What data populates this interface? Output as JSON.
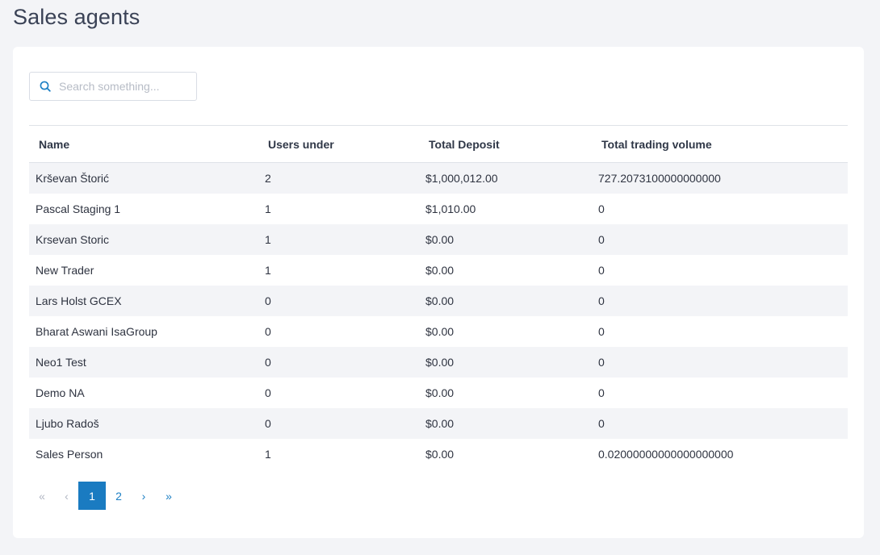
{
  "page": {
    "title": "Sales agents"
  },
  "search": {
    "placeholder": "Search something...",
    "value": ""
  },
  "table": {
    "headers": {
      "name": "Name",
      "users": "Users under",
      "deposit": "Total Deposit",
      "volume": "Total trading volume"
    },
    "rows": [
      {
        "name": "Krševan Štorić",
        "users": "2",
        "deposit": "$1,000,012.00",
        "volume": "727.2073100000000000"
      },
      {
        "name": "Pascal Staging 1",
        "users": "1",
        "deposit": "$1,010.00",
        "volume": "0"
      },
      {
        "name": "Krsevan Storic",
        "users": "1",
        "deposit": "$0.00",
        "volume": "0"
      },
      {
        "name": "New Trader",
        "users": "1",
        "deposit": "$0.00",
        "volume": "0"
      },
      {
        "name": "Lars Holst GCEX",
        "users": "0",
        "deposit": "$0.00",
        "volume": "0"
      },
      {
        "name": "Bharat Aswani IsaGroup",
        "users": "0",
        "deposit": "$0.00",
        "volume": "0"
      },
      {
        "name": "Neo1 Test",
        "users": "0",
        "deposit": "$0.00",
        "volume": "0"
      },
      {
        "name": "Demo NA",
        "users": "0",
        "deposit": "$0.00",
        "volume": "0"
      },
      {
        "name": "Ljubo Radoš",
        "users": "0",
        "deposit": "$0.00",
        "volume": "0"
      },
      {
        "name": "Sales Person",
        "users": "1",
        "deposit": "$0.00",
        "volume": "0.02000000000000000000"
      }
    ]
  },
  "pagination": {
    "first": "«",
    "prev": "‹",
    "pages": [
      "1",
      "2"
    ],
    "current": "1",
    "next": "›",
    "last": "»"
  },
  "colors": {
    "accent": "#1a7bc1",
    "row_alt": "#f3f4f7",
    "background": "#f3f4f7"
  },
  "icons": {
    "search": "search-icon"
  }
}
